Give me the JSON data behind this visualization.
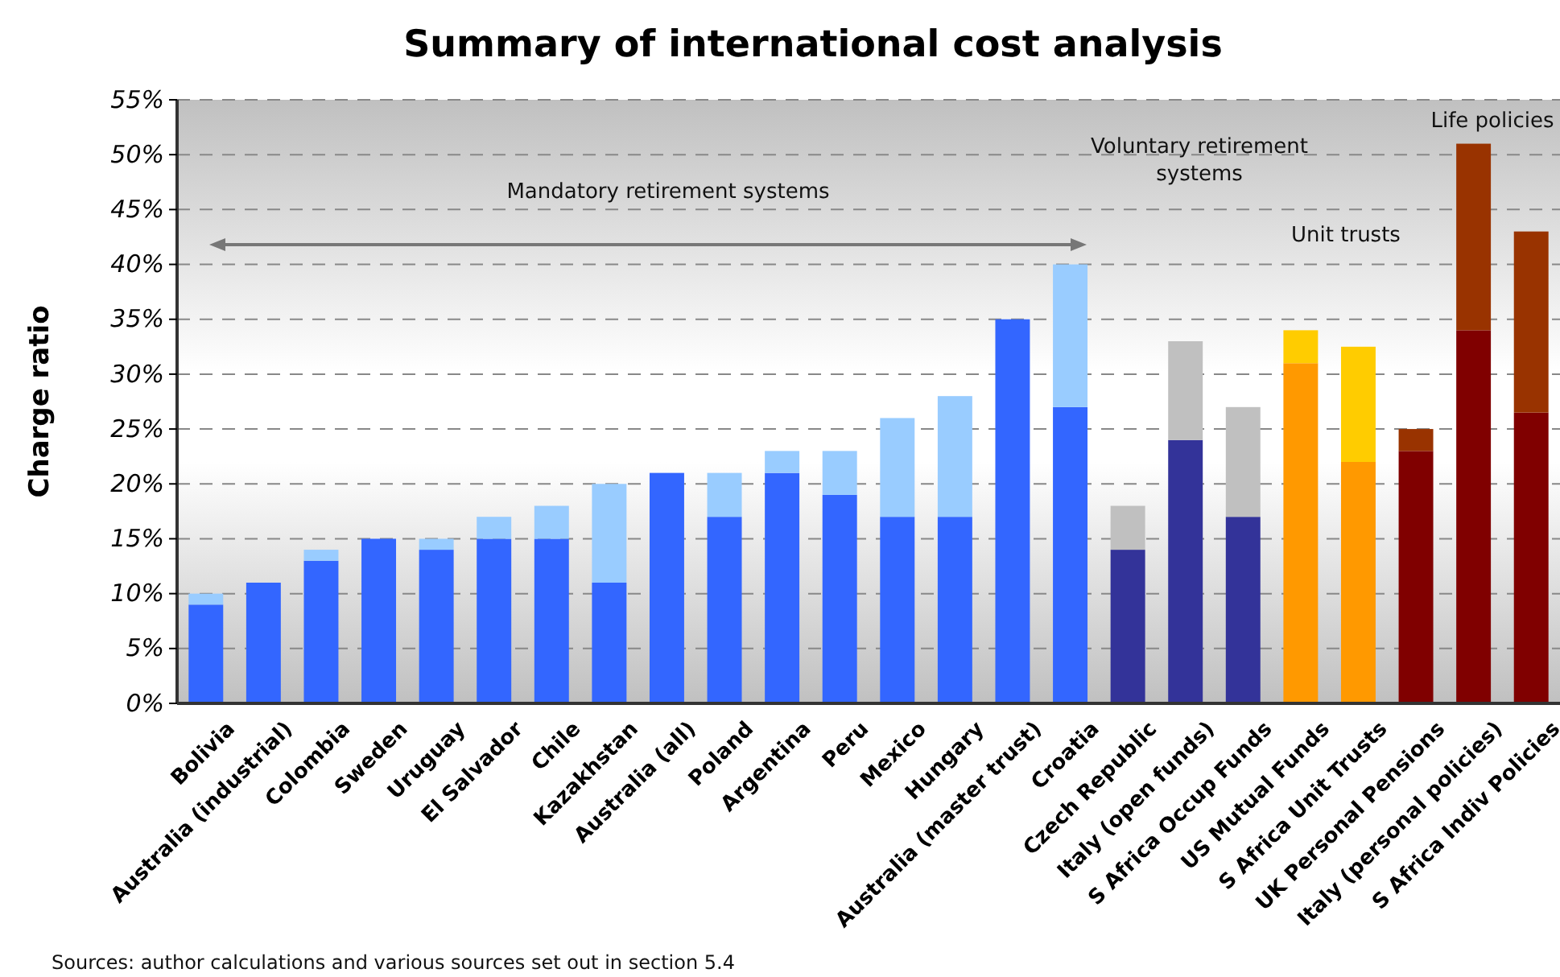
{
  "chart_data": {
    "type": "bar",
    "stacked": true,
    "title": "Summary of international cost analysis",
    "ylabel": "Charge ratio",
    "categories": [
      "Bolivia",
      "Australia (industrial)",
      "Colombia",
      "Sweden",
      "Uruguay",
      "El Salvador",
      "Chile",
      "Kazakhstan",
      "Australia (all)",
      "Poland",
      "Argentina",
      "Peru",
      "Mexico",
      "Hungary",
      "Australia (master trust)",
      "Croatia",
      "Czech Republic",
      "Italy (open funds)",
      "S Africa Occup Funds",
      "US Mutual Funds",
      "S Africa Unit Trusts",
      "UK Personal Pensions",
      "Italy (personal policies)",
      "S Africa Indiv Policies"
    ],
    "series": [
      {
        "values": [
          9,
          11,
          13,
          15,
          14,
          15,
          15,
          11,
          21,
          17,
          21,
          19,
          17,
          17,
          35,
          27,
          14,
          24,
          17,
          31,
          22,
          23,
          34,
          26.5
        ],
        "colors": [
          "#3366ff",
          "#3366ff",
          "#3366ff",
          "#3366ff",
          "#3366ff",
          "#3366ff",
          "#3366ff",
          "#3366ff",
          "#3366ff",
          "#3366ff",
          "#3366ff",
          "#3366ff",
          "#3366ff",
          "#3366ff",
          "#3366ff",
          "#3366ff",
          "#333399",
          "#333399",
          "#333399",
          "#ff9900",
          "#ff9900",
          "#800000",
          "#800000",
          "#800000"
        ]
      },
      {
        "values": [
          1,
          0,
          1,
          0,
          1,
          2,
          3,
          9,
          0,
          4,
          2,
          4,
          9,
          11,
          0,
          13,
          4,
          9,
          10,
          3,
          10.5,
          2,
          17,
          16.5
        ],
        "colors": [
          "#99ccff",
          "#99ccff",
          "#99ccff",
          "#99ccff",
          "#99ccff",
          "#99ccff",
          "#99ccff",
          "#99ccff",
          "#99ccff",
          "#99ccff",
          "#99ccff",
          "#99ccff",
          "#99ccff",
          "#99ccff",
          "#99ccff",
          "#99ccff",
          "#c0c0c0",
          "#c0c0c0",
          "#c0c0c0",
          "#ffcc00",
          "#ffcc00",
          "#993300",
          "#993300",
          "#993300"
        ]
      }
    ],
    "ylim": [
      0,
      55
    ],
    "yticks": [
      {
        "value": 0,
        "label": "0%"
      },
      {
        "value": 5,
        "label": "5%"
      },
      {
        "value": 10,
        "label": "10%"
      },
      {
        "value": 15,
        "label": "15%"
      },
      {
        "value": 20,
        "label": "20%"
      },
      {
        "value": 25,
        "label": "25%"
      },
      {
        "value": 30,
        "label": "30%"
      },
      {
        "value": 35,
        "label": "35%"
      },
      {
        "value": 40,
        "label": "40%"
      },
      {
        "value": 45,
        "label": "45%"
      },
      {
        "value": 50,
        "label": "50%"
      },
      {
        "value": 55,
        "label": "55%"
      }
    ],
    "grid": "y",
    "annotations": [
      "Mandatory retirement systems",
      "Voluntary retirement systems",
      "Unit trusts",
      "Life policies",
      "Sources: author calculations and various sources set out in section 5.4"
    ]
  }
}
